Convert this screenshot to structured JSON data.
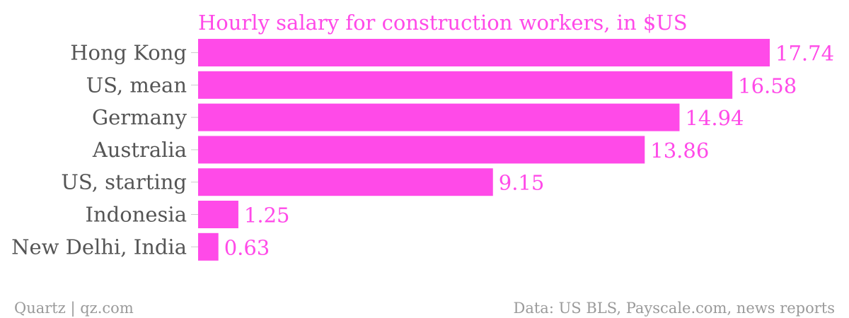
{
  "chart_data": {
    "type": "bar",
    "orientation": "horizontal",
    "title": "Hourly salary for construction workers, in $US",
    "categories": [
      "Hong Kong",
      "US, mean",
      "Germany",
      "Australia",
      "US, starting",
      "Indonesia",
      "New Delhi, India"
    ],
    "values": [
      17.74,
      16.58,
      14.94,
      13.86,
      9.15,
      1.25,
      0.63
    ],
    "value_labels": [
      "17.74",
      "16.58",
      "14.94",
      "13.86",
      "9.15",
      "1.25",
      "0.63"
    ],
    "xlim": [
      0,
      17.74
    ],
    "grid": false,
    "legend": "none",
    "bar_color": "#ff4ae8"
  },
  "footer": {
    "source_left": "Quartz | qz.com",
    "source_right": "Data: US BLS, Payscale.com, news reports"
  },
  "colors": {
    "accent": "#ff4ae8",
    "label": "#555555",
    "footer": "#9a9a9a"
  }
}
